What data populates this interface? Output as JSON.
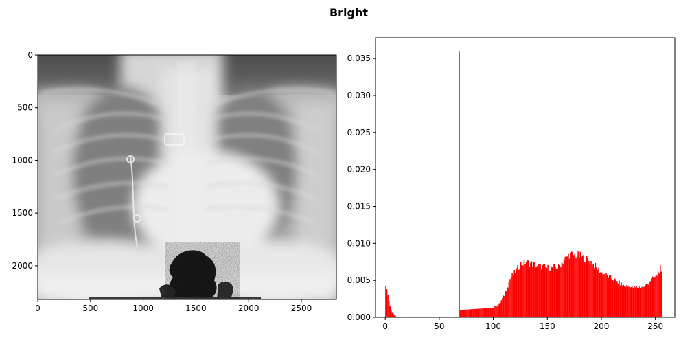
{
  "figure": {
    "suptitle": "Bright"
  },
  "chart_data": [
    {
      "type": "image",
      "image_size": [
        2832,
        2320
      ],
      "xlim": [
        0,
        2832
      ],
      "ylim": [
        2320,
        0
      ],
      "xticks": [
        0,
        500,
        1000,
        1500,
        2000,
        2500
      ],
      "yticks": [
        0,
        500,
        1000,
        1500,
        2000
      ]
    },
    {
      "type": "histogram",
      "bar_color": "#ff0000",
      "xlim": [
        -9,
        268
      ],
      "ylim": [
        0,
        0.0378
      ],
      "xticks": [
        0,
        50,
        100,
        150,
        200,
        250
      ],
      "yticks": [
        "0.000",
        "0.005",
        "0.010",
        "0.015",
        "0.020",
        "0.025",
        "0.030",
        "0.035"
      ],
      "bins": 256,
      "approx_density": [
        [
          0,
          0.0042
        ],
        [
          1,
          0.0038
        ],
        [
          2,
          0.003
        ],
        [
          3,
          0.0022
        ],
        [
          4,
          0.0015
        ],
        [
          5,
          0.001
        ],
        [
          6,
          0.0007
        ],
        [
          7,
          0.0005
        ],
        [
          8,
          0.0003
        ],
        [
          9,
          0.0002
        ],
        [
          10,
          0.0001
        ],
        [
          14,
          5e-05
        ],
        [
          67,
          0.0
        ],
        [
          68,
          0.036
        ],
        [
          69,
          0.001
        ],
        [
          80,
          0.0011
        ],
        [
          90,
          0.0012
        ],
        [
          100,
          0.0013
        ],
        [
          105,
          0.0018
        ],
        [
          110,
          0.003
        ],
        [
          115,
          0.0052
        ],
        [
          120,
          0.0062
        ],
        [
          125,
          0.0072
        ],
        [
          130,
          0.0075
        ],
        [
          140,
          0.007
        ],
        [
          150,
          0.0067
        ],
        [
          160,
          0.0068
        ],
        [
          165,
          0.0078
        ],
        [
          170,
          0.0085
        ],
        [
          180,
          0.0083
        ],
        [
          190,
          0.0075
        ],
        [
          200,
          0.006
        ],
        [
          210,
          0.0052
        ],
        [
          220,
          0.0043
        ],
        [
          230,
          0.004
        ],
        [
          240,
          0.0042
        ],
        [
          245,
          0.005
        ],
        [
          250,
          0.0055
        ],
        [
          254,
          0.0066
        ],
        [
          255,
          0.0058
        ]
      ]
    }
  ]
}
